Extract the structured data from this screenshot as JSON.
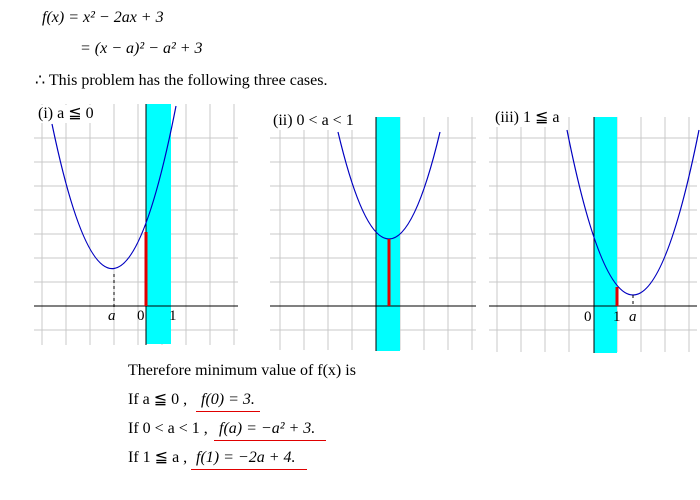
{
  "header": {
    "line1": "f(x) = x² − 2ax + 3",
    "line2": "= (x − a)² − a² + 3",
    "intro": "∴ This problem has the following three cases."
  },
  "cases": [
    {
      "label": "(i) a ≦ 0",
      "tick_labels": [
        "a",
        "0",
        "1"
      ]
    },
    {
      "label": "(ii) 0 < a < 1",
      "tick_labels": []
    },
    {
      "label": "(iii) 1 ≦ a",
      "tick_labels": [
        "0",
        "1",
        "a"
      ]
    }
  ],
  "conclusion": {
    "heading": "Therefore minimum value of f(x) is",
    "rows": [
      {
        "condition": "If a ≦ 0 ,",
        "result": "f(0) = 3."
      },
      {
        "condition": "If 0 < a < 1 ,",
        "result": "f(a) = −a² + 3."
      },
      {
        "condition": "If 1 ≦ a ,",
        "result": "f(1) = −2a + 4."
      }
    ]
  },
  "colors": {
    "curve": "#0000c0",
    "band": "#00ffff",
    "min_segment": "#e00000",
    "grid": "#c0c0c0"
  }
}
